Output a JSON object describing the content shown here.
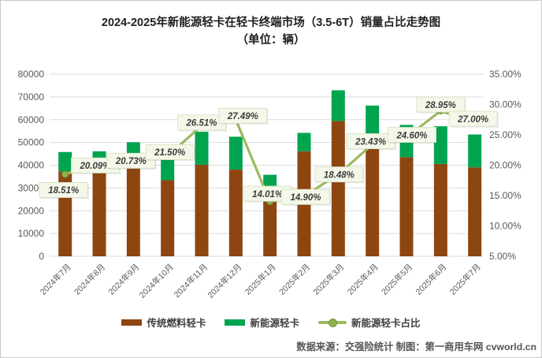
{
  "page": {
    "title_line1": "2024-2025年新能源轻卡在轻卡终端市场（3.5-6T）销量占比走势图",
    "title_line2": "（单位：辆）",
    "footer": "数据来源：交强险统计 制图：第一商用车网 cvworld.cn"
  },
  "legend": {
    "items": [
      {
        "label": "传统燃料轻卡",
        "type": "bar",
        "color": "#8E4611"
      },
      {
        "label": "新能源轻卡",
        "type": "bar",
        "color": "#00A44F"
      },
      {
        "label": "新能源轻卡占比",
        "type": "line",
        "color": "#9CBA5F"
      }
    ]
  },
  "chart_data": {
    "type": "bar",
    "subtype": "stacked-bars-with-percent-line",
    "title": "2024-2025年新能源轻卡在轻卡终端市场（3.5-6T）销量占比走势图",
    "unit": "辆",
    "categories": [
      "2024年7月",
      "2024年8月",
      "2024年9月",
      "2024年10月",
      "2024年11月",
      "2024年12月",
      "2025年1月",
      "2025年2月",
      "2025年3月",
      "2025年4月",
      "2025年5月",
      "2025年6月",
      "2025年7月"
    ],
    "series": [
      {
        "name": "传统燃料轻卡",
        "chart": "bar",
        "stack": true,
        "color": "#8E4611",
        "values": [
          37322,
          36839,
          39714,
          33441,
          40199,
          38068,
          30784,
          46124,
          59428,
          50689,
          43506,
          40570,
          39055
        ]
      },
      {
        "name": "新能源轻卡",
        "chart": "bar",
        "stack": true,
        "color": "#00A44F",
        "values": [
          8478,
          9261,
          10386,
          9159,
          14501,
          14432,
          5016,
          8076,
          13472,
          15511,
          14194,
          16530,
          14445
        ]
      },
      {
        "name": "新能源轻卡占比",
        "chart": "line",
        "axis": "right",
        "color": "#9CBA5F",
        "values": [
          18.51,
          20.09,
          20.73,
          21.5,
          26.51,
          27.49,
          14.01,
          14.9,
          18.48,
          23.43,
          24.6,
          28.95,
          27.0
        ],
        "labels": [
          "18.51%",
          "20.09%",
          "20.73%",
          "21.50%",
          "26.51%",
          "27.49%",
          "14.01%",
          "14.90%",
          "18.48%",
          "23.43%",
          "24.60%",
          "28.95%",
          "27.00%"
        ]
      }
    ],
    "totals": [
      45800,
      46100,
      50100,
      42600,
      54700,
      52500,
      35800,
      54200,
      72900,
      66200,
      57700,
      57100,
      53500
    ],
    "left_axis": {
      "min": 0,
      "max": 80000,
      "step": 10000,
      "ticks": [
        "0",
        "10000",
        "20000",
        "30000",
        "40000",
        "50000",
        "60000",
        "70000",
        "80000"
      ]
    },
    "right_axis": {
      "min": 5,
      "max": 35,
      "step": 5,
      "ticks": [
        "5.00%",
        "10.00%",
        "15.00%",
        "20.00%",
        "25.00%",
        "30.00%",
        "35.00%"
      ]
    },
    "grid": true,
    "legend_position": "bottom",
    "colors": {
      "grid": "#DBDBDB",
      "axis_text": "#595959",
      "label_box_bg": "#F4F8E9",
      "label_box_border": "#DCE3C9",
      "label_text": "#3C3C3C",
      "marker_fill": "#8CB04C",
      "marker_stroke": "#78973C"
    }
  }
}
